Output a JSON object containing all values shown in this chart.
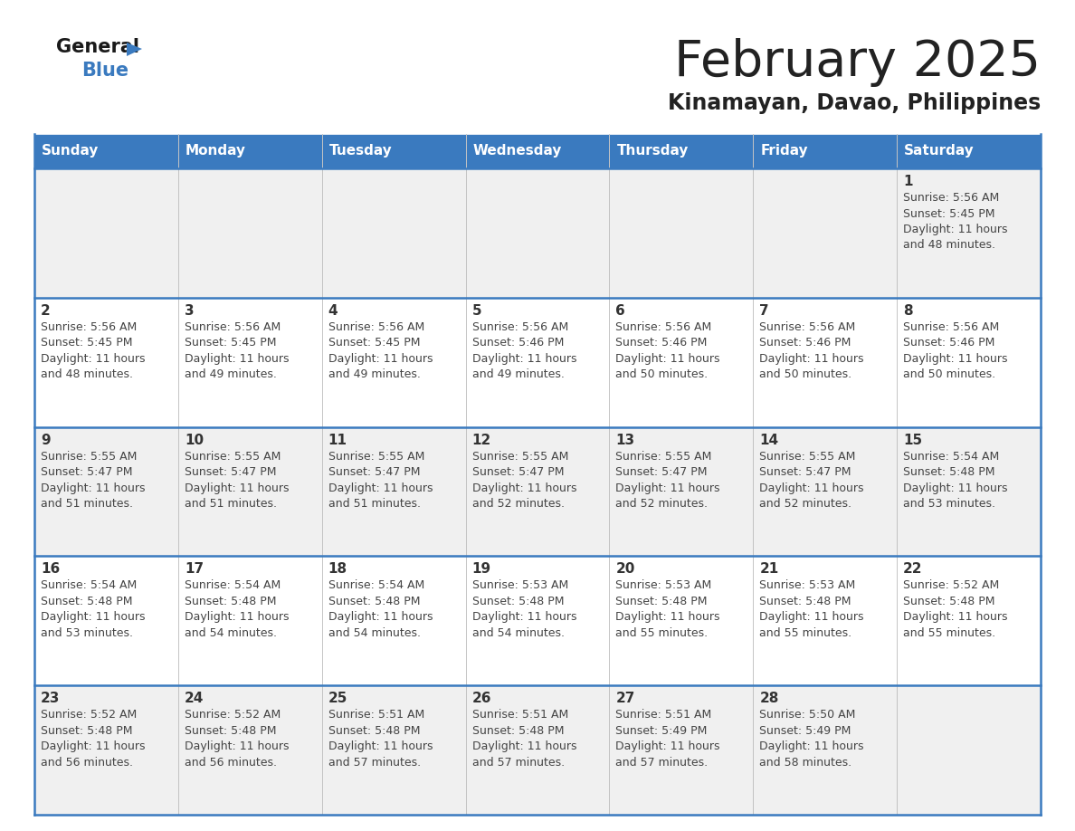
{
  "title": "February 2025",
  "subtitle": "Kinamayan, Davao, Philippines",
  "days_of_week": [
    "Sunday",
    "Monday",
    "Tuesday",
    "Wednesday",
    "Thursday",
    "Friday",
    "Saturday"
  ],
  "header_bg": "#3a7abf",
  "header_text": "#ffffff",
  "cell_bg_odd": "#f0f0f0",
  "cell_bg_even": "#ffffff",
  "separator_color": "#3a7abf",
  "text_color": "#444444",
  "day_num_color": "#333333",
  "title_color": "#222222",
  "calendar_data": [
    [
      null,
      null,
      null,
      null,
      null,
      null,
      {
        "day": 1,
        "sunrise": "5:56 AM",
        "sunset": "5:45 PM",
        "daylight": "11 hours",
        "daylight2": "and 48 minutes."
      }
    ],
    [
      {
        "day": 2,
        "sunrise": "5:56 AM",
        "sunset": "5:45 PM",
        "daylight": "11 hours",
        "daylight2": "and 48 minutes."
      },
      {
        "day": 3,
        "sunrise": "5:56 AM",
        "sunset": "5:45 PM",
        "daylight": "11 hours",
        "daylight2": "and 49 minutes."
      },
      {
        "day": 4,
        "sunrise": "5:56 AM",
        "sunset": "5:45 PM",
        "daylight": "11 hours",
        "daylight2": "and 49 minutes."
      },
      {
        "day": 5,
        "sunrise": "5:56 AM",
        "sunset": "5:46 PM",
        "daylight": "11 hours",
        "daylight2": "and 49 minutes."
      },
      {
        "day": 6,
        "sunrise": "5:56 AM",
        "sunset": "5:46 PM",
        "daylight": "11 hours",
        "daylight2": "and 50 minutes."
      },
      {
        "day": 7,
        "sunrise": "5:56 AM",
        "sunset": "5:46 PM",
        "daylight": "11 hours",
        "daylight2": "and 50 minutes."
      },
      {
        "day": 8,
        "sunrise": "5:56 AM",
        "sunset": "5:46 PM",
        "daylight": "11 hours",
        "daylight2": "and 50 minutes."
      }
    ],
    [
      {
        "day": 9,
        "sunrise": "5:55 AM",
        "sunset": "5:47 PM",
        "daylight": "11 hours",
        "daylight2": "and 51 minutes."
      },
      {
        "day": 10,
        "sunrise": "5:55 AM",
        "sunset": "5:47 PM",
        "daylight": "11 hours",
        "daylight2": "and 51 minutes."
      },
      {
        "day": 11,
        "sunrise": "5:55 AM",
        "sunset": "5:47 PM",
        "daylight": "11 hours",
        "daylight2": "and 51 minutes."
      },
      {
        "day": 12,
        "sunrise": "5:55 AM",
        "sunset": "5:47 PM",
        "daylight": "11 hours",
        "daylight2": "and 52 minutes."
      },
      {
        "day": 13,
        "sunrise": "5:55 AM",
        "sunset": "5:47 PM",
        "daylight": "11 hours",
        "daylight2": "and 52 minutes."
      },
      {
        "day": 14,
        "sunrise": "5:55 AM",
        "sunset": "5:47 PM",
        "daylight": "11 hours",
        "daylight2": "and 52 minutes."
      },
      {
        "day": 15,
        "sunrise": "5:54 AM",
        "sunset": "5:48 PM",
        "daylight": "11 hours",
        "daylight2": "and 53 minutes."
      }
    ],
    [
      {
        "day": 16,
        "sunrise": "5:54 AM",
        "sunset": "5:48 PM",
        "daylight": "11 hours",
        "daylight2": "and 53 minutes."
      },
      {
        "day": 17,
        "sunrise": "5:54 AM",
        "sunset": "5:48 PM",
        "daylight": "11 hours",
        "daylight2": "and 54 minutes."
      },
      {
        "day": 18,
        "sunrise": "5:54 AM",
        "sunset": "5:48 PM",
        "daylight": "11 hours",
        "daylight2": "and 54 minutes."
      },
      {
        "day": 19,
        "sunrise": "5:53 AM",
        "sunset": "5:48 PM",
        "daylight": "11 hours",
        "daylight2": "and 54 minutes."
      },
      {
        "day": 20,
        "sunrise": "5:53 AM",
        "sunset": "5:48 PM",
        "daylight": "11 hours",
        "daylight2": "and 55 minutes."
      },
      {
        "day": 21,
        "sunrise": "5:53 AM",
        "sunset": "5:48 PM",
        "daylight": "11 hours",
        "daylight2": "and 55 minutes."
      },
      {
        "day": 22,
        "sunrise": "5:52 AM",
        "sunset": "5:48 PM",
        "daylight": "11 hours",
        "daylight2": "and 55 minutes."
      }
    ],
    [
      {
        "day": 23,
        "sunrise": "5:52 AM",
        "sunset": "5:48 PM",
        "daylight": "11 hours",
        "daylight2": "and 56 minutes."
      },
      {
        "day": 24,
        "sunrise": "5:52 AM",
        "sunset": "5:48 PM",
        "daylight": "11 hours",
        "daylight2": "and 56 minutes."
      },
      {
        "day": 25,
        "sunrise": "5:51 AM",
        "sunset": "5:48 PM",
        "daylight": "11 hours",
        "daylight2": "and 57 minutes."
      },
      {
        "day": 26,
        "sunrise": "5:51 AM",
        "sunset": "5:48 PM",
        "daylight": "11 hours",
        "daylight2": "and 57 minutes."
      },
      {
        "day": 27,
        "sunrise": "5:51 AM",
        "sunset": "5:49 PM",
        "daylight": "11 hours",
        "daylight2": "and 57 minutes."
      },
      {
        "day": 28,
        "sunrise": "5:50 AM",
        "sunset": "5:49 PM",
        "daylight": "11 hours",
        "daylight2": "and 58 minutes."
      },
      null
    ]
  ],
  "logo_text_general": "General",
  "logo_text_blue": "Blue"
}
